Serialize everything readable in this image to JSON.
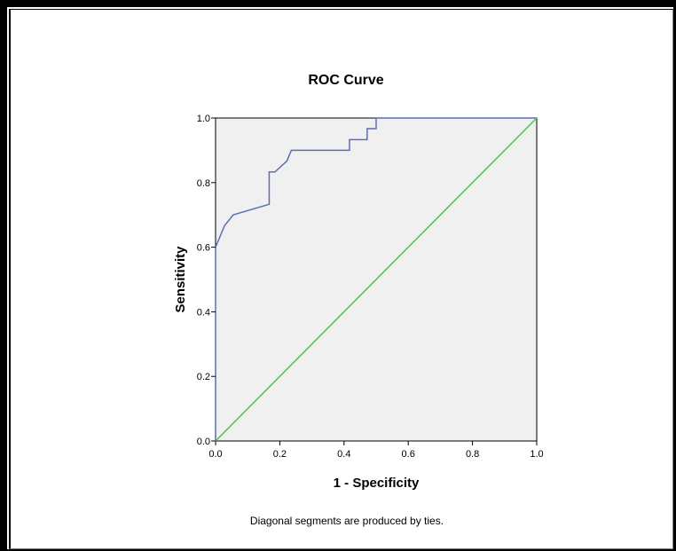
{
  "chart_data": {
    "type": "line",
    "title": "ROC Curve",
    "xlabel": "1 - Specificity",
    "ylabel": "Sensitivity",
    "xlim": [
      0,
      1
    ],
    "ylim": [
      0,
      1
    ],
    "x_ticks": [
      "0.0",
      "0.2",
      "0.4",
      "0.6",
      "0.8",
      "1.0"
    ],
    "y_ticks": [
      "0.0",
      "0.2",
      "0.4",
      "0.6",
      "0.8",
      "1.0"
    ],
    "grid": false,
    "plot_background": "#f0f0f0",
    "series": [
      {
        "color": "#5a6fb8",
        "x": [
          0.0,
          0.0,
          0.028,
          0.055,
          0.167,
          0.167,
          0.185,
          0.222,
          0.236,
          0.417,
          0.417,
          0.472,
          0.472,
          0.5,
          0.5,
          1.0
        ],
        "y": [
          0.0,
          0.6,
          0.667,
          0.7,
          0.733,
          0.833,
          0.833,
          0.867,
          0.9,
          0.9,
          0.933,
          0.933,
          0.967,
          0.967,
          1.0,
          1.0
        ]
      },
      {
        "color": "#4cc44c",
        "x": [
          0,
          1
        ],
        "y": [
          0,
          1
        ]
      }
    ],
    "footnote": "Diagonal segments are produced by ties."
  }
}
